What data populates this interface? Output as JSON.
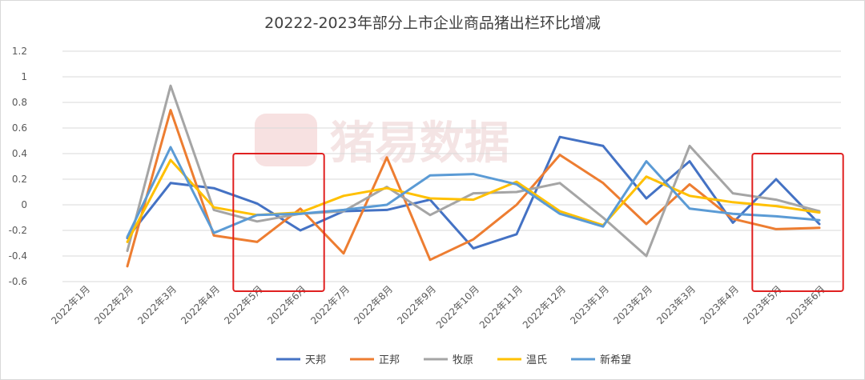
{
  "chart_data": {
    "type": "line",
    "title": "20222-2023年部分上市企业商品猪出栏环比增减",
    "xlabel": "",
    "ylabel": "",
    "ylim": [
      -0.6,
      1.2
    ],
    "yticks": [
      1.2,
      1,
      0.8,
      0.6,
      0.4,
      0.2,
      0,
      -0.2,
      -0.4,
      -0.6
    ],
    "grid": true,
    "legend_position": "bottom",
    "categories": [
      "2022年1月",
      "2022年2月",
      "2022年3月",
      "2022年4月",
      "2022年5月",
      "2022年6月",
      "2022年7月",
      "2022年8月",
      "2022年9月",
      "2022年10月",
      "2022年11月",
      "2022年12月",
      "2023年1月",
      "2023年2月",
      "2023年3月",
      "2023年4月",
      "2023年5月",
      "2023年6月"
    ],
    "series": [
      {
        "name": "天邦",
        "color": "#4472C4",
        "values": [
          null,
          -0.26,
          0.17,
          0.13,
          0.01,
          -0.2,
          -0.05,
          -0.04,
          0.04,
          -0.34,
          -0.23,
          0.53,
          0.46,
          0.05,
          0.34,
          -0.14,
          0.2,
          -0.15
        ]
      },
      {
        "name": "正邦",
        "color": "#ED7D31",
        "values": [
          null,
          -0.48,
          0.74,
          -0.24,
          -0.29,
          -0.03,
          -0.38,
          0.37,
          -0.43,
          -0.27,
          0.0,
          0.39,
          0.17,
          -0.15,
          0.16,
          -0.11,
          -0.19,
          -0.18
        ]
      },
      {
        "name": "牧原",
        "color": "#A5A5A5",
        "values": [
          null,
          -0.36,
          0.93,
          -0.04,
          -0.13,
          -0.07,
          -0.05,
          0.14,
          -0.08,
          0.09,
          0.1,
          0.17,
          -0.1,
          -0.4,
          0.46,
          0.09,
          0.04,
          -0.05
        ]
      },
      {
        "name": "温氏",
        "color": "#FFC000",
        "values": [
          null,
          -0.29,
          0.35,
          -0.02,
          -0.08,
          -0.06,
          0.07,
          0.13,
          0.05,
          0.04,
          0.18,
          -0.05,
          -0.16,
          0.22,
          0.07,
          0.02,
          -0.01,
          -0.06
        ]
      },
      {
        "name": "新希望",
        "color": "#5B9BD5",
        "values": [
          null,
          -0.25,
          0.45,
          -0.22,
          -0.08,
          -0.07,
          -0.04,
          0.0,
          0.23,
          0.24,
          0.16,
          -0.07,
          -0.17,
          0.34,
          -0.03,
          -0.07,
          -0.09,
          -0.12
        ]
      }
    ],
    "annotations": {
      "highlight_boxes": [
        {
          "from": "2022年5月",
          "to": "2022年6月",
          "color": "#E02020"
        },
        {
          "from": "2023年5月",
          "to": "2023年6月",
          "color": "#E02020"
        }
      ],
      "watermark": "猪易数据"
    }
  }
}
